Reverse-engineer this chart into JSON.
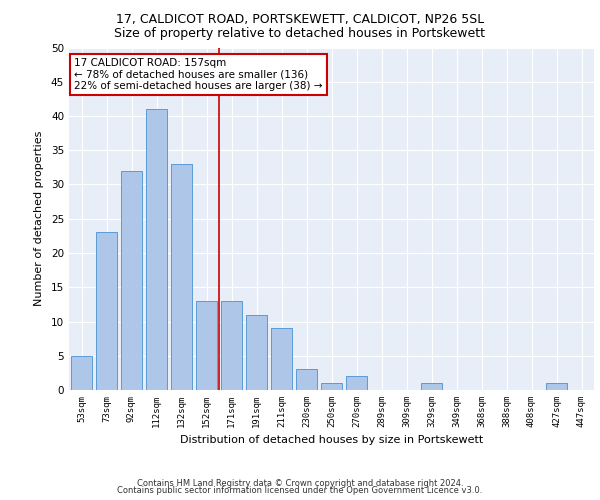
{
  "title1": "17, CALDICOT ROAD, PORTSKEWETT, CALDICOT, NP26 5SL",
  "title2": "Size of property relative to detached houses in Portskewett",
  "xlabel": "Distribution of detached houses by size in Portskewett",
  "ylabel": "Number of detached properties",
  "categories": [
    "53sqm",
    "73sqm",
    "92sqm",
    "112sqm",
    "132sqm",
    "152sqm",
    "171sqm",
    "191sqm",
    "211sqm",
    "230sqm",
    "250sqm",
    "270sqm",
    "289sqm",
    "309sqm",
    "329sqm",
    "349sqm",
    "368sqm",
    "388sqm",
    "408sqm",
    "427sqm",
    "447sqm"
  ],
  "values": [
    5,
    23,
    32,
    41,
    33,
    13,
    13,
    11,
    9,
    3,
    1,
    2,
    0,
    0,
    1,
    0,
    0,
    0,
    0,
    1,
    0
  ],
  "bar_color": "#aec6e8",
  "bar_edge_color": "#5b9bd5",
  "vline_x": 5.5,
  "annotation_title": "17 CALDICOT ROAD: 157sqm",
  "annotation_line1": "← 78% of detached houses are smaller (136)",
  "annotation_line2": "22% of semi-detached houses are larger (38) →",
  "annotation_box_color": "#ffffff",
  "annotation_box_edge": "#cc0000",
  "vline_color": "#cc0000",
  "ylim": [
    0,
    50
  ],
  "yticks": [
    0,
    5,
    10,
    15,
    20,
    25,
    30,
    35,
    40,
    45,
    50
  ],
  "footnote1": "Contains HM Land Registry data © Crown copyright and database right 2024.",
  "footnote2": "Contains public sector information licensed under the Open Government Licence v3.0.",
  "bg_color": "#e8eef8",
  "grid_color": "#ffffff",
  "title1_fontsize": 9,
  "title2_fontsize": 9,
  "ann_fontsize": 7.5,
  "footnote_fontsize": 6.0
}
